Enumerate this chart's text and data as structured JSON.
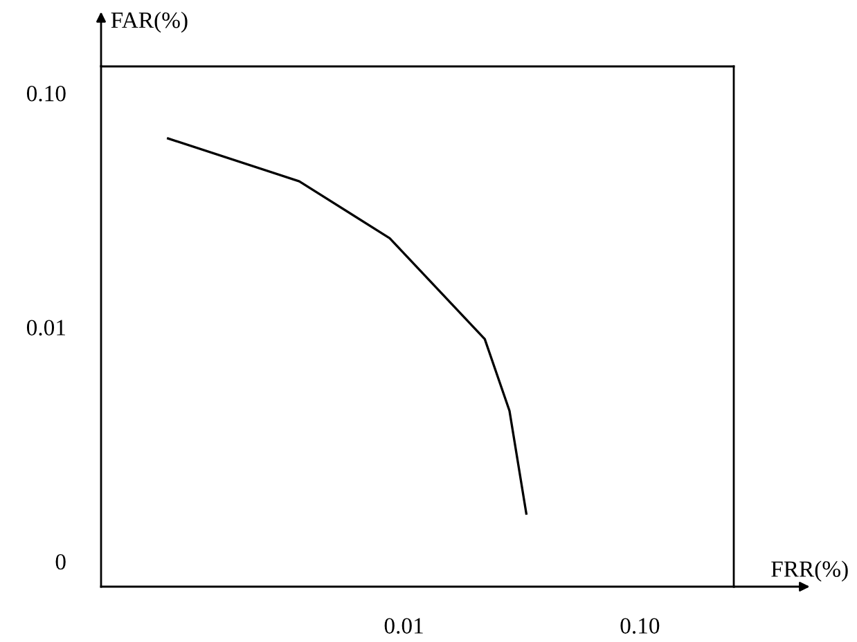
{
  "chart_data": {
    "type": "line",
    "xlabel": "FRR(%)",
    "ylabel": "FAR(%)",
    "log": "xy",
    "x": [
      0.001,
      0.0036,
      0.0087,
      0.022,
      0.028,
      0.033
    ],
    "series": [
      {
        "color": "#000000",
        "values": [
          0.064,
          0.042,
          0.024,
          0.0089,
          0.0044,
          0.0016
        ]
      }
    ],
    "xlim": [
      0.00052,
      0.25
    ],
    "ylim": [
      0.00078,
      0.13
    ],
    "xticks": [
      0.01,
      {
        "value": 0.1,
        "label": "0.10"
      }
    ],
    "yticks": [
      {
        "value": 0.001,
        "label": "0"
      },
      0.01,
      {
        "value": 0.1,
        "label": "0.10"
      }
    ]
  }
}
